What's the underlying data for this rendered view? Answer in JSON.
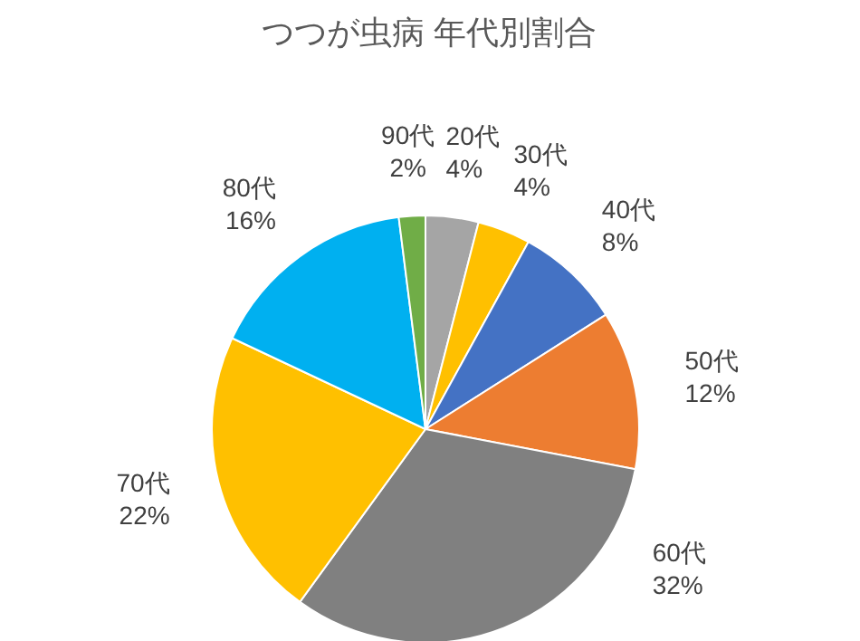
{
  "chart_data": {
    "type": "pie",
    "title": "つつが虫病 年代別割合",
    "categories": [
      "20代",
      "30代",
      "40代",
      "50代",
      "60代",
      "70代",
      "80代",
      "90代"
    ],
    "values": [
      4,
      4,
      8,
      12,
      32,
      22,
      16,
      2
    ],
    "colors": [
      "#a5a5a5",
      "#ffc000",
      "#4472c4",
      "#ed7d31",
      "#808080",
      "#ffc000",
      "#00b0f0",
      "#70ad47"
    ],
    "value_labels": [
      "4%",
      "4%",
      "8%",
      "12%",
      "32%",
      "22%",
      "16%",
      "2%"
    ]
  }
}
